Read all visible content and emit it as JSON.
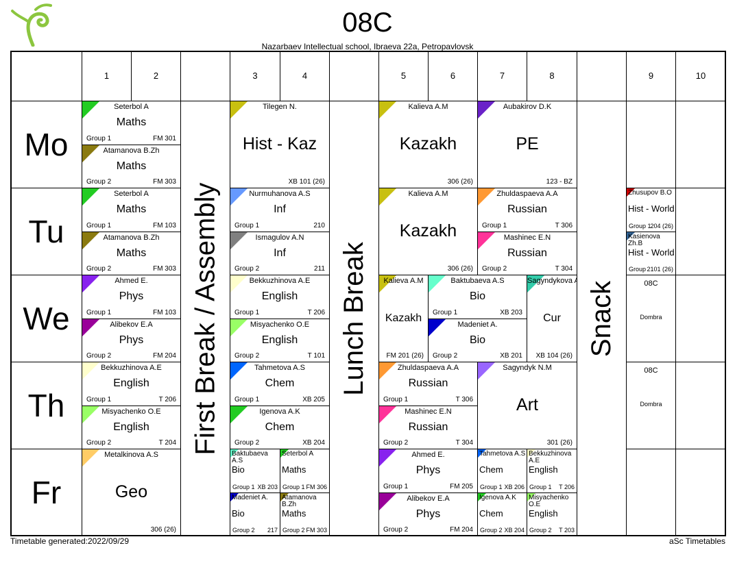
{
  "header": {
    "title": "08C",
    "subtitle": "Nazarbaev Intellectual school, Ibraeva 22a, Petropavlovsk"
  },
  "footer": {
    "generated": "Timetable generated:2022/09/29",
    "brand": "aSc Timetables"
  },
  "periods": [
    "1",
    "2",
    "3",
    "4",
    "5",
    "6",
    "7",
    "8",
    "9",
    "10"
  ],
  "breaks": {
    "first": "First Break / Assembly",
    "lunch": "Lunch Break",
    "snack": "Snack"
  },
  "days": [
    "Mo",
    "Tu",
    "We",
    "Th",
    "Fr"
  ],
  "lessons": [
    {
      "teacher": "Seterbol A",
      "subject": "Maths",
      "group": "Group 1",
      "room": "FM 301",
      "color": "#22cc22"
    },
    {
      "teacher": "Atamanova B.Zh",
      "subject": "Maths",
      "group": "Group 2",
      "room": "FM 303",
      "color": "#8a7a10"
    },
    {
      "teacher": "Tilegen N.",
      "subject": "Hist - Kaz",
      "group": "",
      "room": "XB 101 (26)",
      "color": "#c8c010"
    },
    {
      "teacher": "Kalieva A.M",
      "subject": "Kazakh",
      "group": "",
      "room": "306 (26)",
      "color": "#c8c010"
    },
    {
      "teacher": "Aubakirov D.K",
      "subject": "PE",
      "group": "",
      "room": "123 - BZ",
      "color": "#6a22c8"
    },
    {
      "teacher": "Seterbol A",
      "subject": "Maths",
      "group": "Group 1",
      "room": "FM 103",
      "color": "#22cc22"
    },
    {
      "teacher": "Atamanova B.Zh",
      "subject": "Maths",
      "group": "Group 2",
      "room": "FM 303",
      "color": "#8a7a10"
    },
    {
      "teacher": "Nurmuhanova A.S",
      "subject": "Inf",
      "group": "Group 1",
      "room": "210",
      "color": "#6699ff"
    },
    {
      "teacher": "Ismagulov A.N",
      "subject": "Inf",
      "group": "Group 2",
      "room": "211",
      "color": "#808080"
    },
    {
      "teacher": "Kalieva A.M",
      "subject": "Kazakh",
      "group": "",
      "room": "306 (26)",
      "color": "#c8c010"
    },
    {
      "teacher": "Zhuldaspaeva A.A",
      "subject": "Russian",
      "group": "Group 1",
      "room": "T 306",
      "color": "#ff9933"
    },
    {
      "teacher": "Mashinec E.N",
      "subject": "Russian",
      "group": "Group 2",
      "room": "T 304",
      "color": "#ff3399"
    },
    {
      "teacher": "Zhusupov B.O",
      "subject": "Hist - World",
      "group": "Group 1",
      "room": "204 (26)",
      "color": "#cc0000"
    },
    {
      "teacher": "Kasienova Zh.B",
      "subject": "Hist - World",
      "group": "Group",
      "room": "2101 (26)",
      "color": "#336699"
    },
    {
      "teacher": "Ahmed E.",
      "subject": "Phys",
      "group": "Group 1",
      "room": "FM 103",
      "color": "#8822ee"
    },
    {
      "teacher": "Alibekov E.A",
      "subject": "Phys",
      "group": "Group 2",
      "room": "FM 204",
      "color": "#990099"
    },
    {
      "teacher": "Bekkuzhinova A.E",
      "subject": "English",
      "group": "Group 1",
      "room": "T 206",
      "color": "#ffffcc"
    },
    {
      "teacher": "Misyachenko O.E",
      "subject": "English",
      "group": "Group 2",
      "room": "T 101",
      "color": "#99ff66"
    },
    {
      "teacher": "Kalieva A.M",
      "subject": "Kazakh",
      "group": "",
      "room": "FM 201 (26)",
      "color": "#c8c010"
    },
    {
      "teacher": "Baktubaeva A.S",
      "subject": "Bio",
      "group": "Group 1",
      "room": "XB 203",
      "color": "#66ffcc"
    },
    {
      "teacher": "Madeniet A.",
      "subject": "Bio",
      "group": "Group 2",
      "room": "XB 201",
      "color": "#0000cc"
    },
    {
      "teacher": "Sagyndykova A.",
      "subject": "Cur",
      "group": "",
      "room": "XB 104 (26)",
      "color": "#33ccaa"
    },
    {
      "teacher": "08C",
      "subject": "Dombra",
      "group": "",
      "room": "",
      "color": ""
    },
    {
      "teacher": "Bekkuzhinova A.E",
      "subject": "English",
      "group": "Group 1",
      "room": "T 206",
      "color": "#ffffcc"
    },
    {
      "teacher": "Misyachenko O.E",
      "subject": "English",
      "group": "Group 2",
      "room": "T 204",
      "color": "#99ff66"
    },
    {
      "teacher": "Tahmetova A.S",
      "subject": "Chem",
      "group": "Group 1",
      "room": "XB 205",
      "color": "#0066ff"
    },
    {
      "teacher": "Igenova A.K",
      "subject": "Chem",
      "group": "Group 2",
      "room": "XB 204",
      "color": "#22cc22"
    },
    {
      "teacher": "Zhuldaspaeva A.A",
      "subject": "Russian",
      "group": "Group 1",
      "room": "T 306",
      "color": "#ff9933"
    },
    {
      "teacher": "Mashinec E.N",
      "subject": "Russian",
      "group": "Group 2",
      "room": "T 304",
      "color": "#ff3399"
    },
    {
      "teacher": "Sagyndyk N.M",
      "subject": "Art",
      "group": "",
      "room": "301 (26)",
      "color": "#9966ff"
    },
    {
      "teacher": "08C",
      "subject": "Dombra",
      "group": "",
      "room": "",
      "color": ""
    },
    {
      "teacher": "Metalkinova A.S",
      "subject": "Geo",
      "group": "",
      "room": "306 (26)",
      "color": "#ffcc66"
    },
    {
      "teacher": "Baktubaeva A.S",
      "subject": "Bio",
      "group": "Group 1",
      "room": "XB 203",
      "color": "#66ffcc"
    },
    {
      "teacher": "Seterbol A",
      "subject": "Maths",
      "group": "Group 1",
      "room": "FM 306",
      "color": "#22cc22"
    },
    {
      "teacher": "Madeniet A.",
      "subject": "Bio",
      "group": "Group 2",
      "room": "217",
      "color": "#0000cc"
    },
    {
      "teacher": "Atamanova B.Zh",
      "subject": "Maths",
      "group": "Group 2",
      "room": "FM 303",
      "color": "#8a7a10"
    },
    {
      "teacher": "Ahmed E.",
      "subject": "Phys",
      "group": "Group 1",
      "room": "FM 205",
      "color": "#8822ee"
    },
    {
      "teacher": "Alibekov E.A",
      "subject": "Phys",
      "group": "Group 2",
      "room": "FM 204",
      "color": "#990099"
    },
    {
      "teacher": "Tahmetova A.S",
      "subject": "Chem",
      "group": "Group 1",
      "room": "XB 206",
      "color": "#0066ff"
    },
    {
      "teacher": "Igenova A.K",
      "subject": "Chem",
      "group": "Group 2",
      "room": "XB 204",
      "color": "#22cc22"
    },
    {
      "teacher": "Bekkuzhinova A.E",
      "subject": "English",
      "group": "Group 1",
      "room": "T 206",
      "color": "#ffffcc"
    },
    {
      "teacher": "Misyachenko O.E",
      "subject": "English",
      "group": "Group 2",
      "room": "T 203",
      "color": "#99ff66"
    }
  ]
}
